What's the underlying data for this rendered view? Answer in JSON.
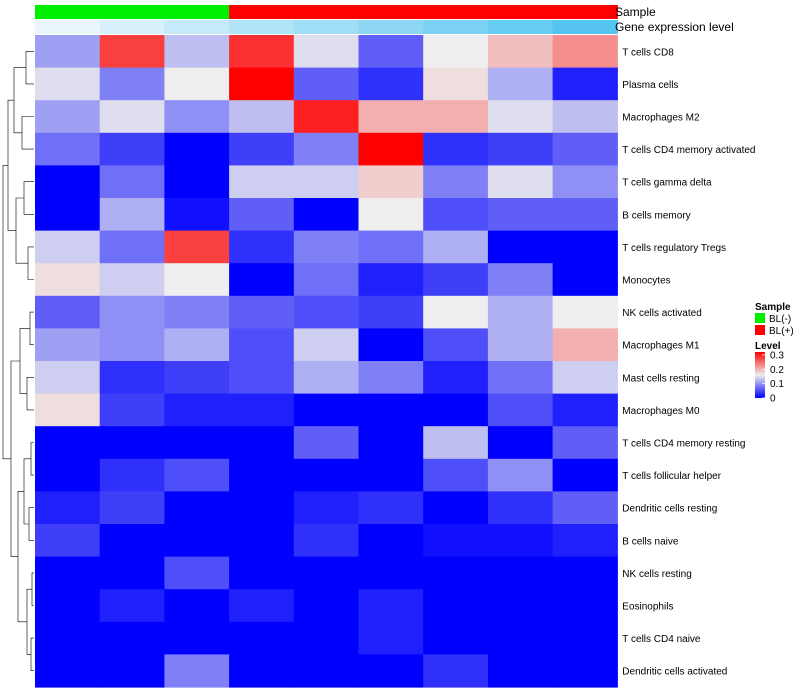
{
  "chart_data": {
    "type": "heatmap",
    "annotation_titles": {
      "sample": "Sample",
      "expression": "Gene expression level"
    },
    "samples": [
      "BL(-)",
      "BL(-)",
      "BL(-)",
      "BL(+)",
      "BL(+)",
      "BL(+)",
      "BL(+)",
      "BL(+)",
      "BL(+)"
    ],
    "expression_levels": [
      0.02,
      0.06,
      0.1,
      0.14,
      0.18,
      0.22,
      0.26,
      0.3,
      0.34
    ],
    "rows": [
      "T cells CD8",
      "Plasma cells",
      "Macrophages M2",
      "T cells CD4 memory activated",
      "T cells gamma delta",
      "B cells memory",
      "T cells regulatory  Tregs",
      "Monocytes",
      "NK cells activated",
      "Macrophages M1",
      "Mast cells resting",
      "Macrophages M0",
      "T cells CD4 memory resting",
      "T cells follicular helper",
      "Dendritic cells resting",
      "B cells naive",
      "NK cells resting",
      "Eosinophils",
      "T cells CD4 naive",
      "Dendritic cells activated"
    ],
    "values": [
      [
        0.1,
        0.26,
        0.12,
        0.27,
        0.14,
        0.06,
        0.15,
        0.18,
        0.21
      ],
      [
        0.14,
        0.08,
        0.15,
        0.3,
        0.06,
        0.03,
        0.16,
        0.11,
        0.02
      ],
      [
        0.1,
        0.14,
        0.09,
        0.12,
        0.28,
        0.19,
        0.19,
        0.14,
        0.12
      ],
      [
        0.07,
        0.04,
        0.0,
        0.04,
        0.08,
        0.3,
        0.03,
        0.04,
        0.06
      ],
      [
        0.0,
        0.07,
        0.0,
        0.13,
        0.13,
        0.17,
        0.08,
        0.14,
        0.09
      ],
      [
        0.0,
        0.11,
        0.01,
        0.06,
        0.0,
        0.15,
        0.05,
        0.06,
        0.06
      ],
      [
        0.13,
        0.07,
        0.26,
        0.03,
        0.08,
        0.07,
        0.11,
        0.0,
        0.0
      ],
      [
        0.16,
        0.13,
        0.15,
        0.0,
        0.07,
        0.02,
        0.04,
        0.08,
        0.0
      ],
      [
        0.06,
        0.09,
        0.08,
        0.06,
        0.05,
        0.04,
        0.15,
        0.11,
        0.15
      ],
      [
        0.1,
        0.09,
        0.11,
        0.05,
        0.13,
        0.0,
        0.05,
        0.11,
        0.19
      ],
      [
        0.13,
        0.03,
        0.04,
        0.05,
        0.11,
        0.08,
        0.02,
        0.07,
        0.13
      ],
      [
        0.16,
        0.04,
        0.02,
        0.02,
        0.0,
        0.0,
        0.0,
        0.05,
        0.02
      ],
      [
        0.0,
        0.0,
        0.0,
        0.0,
        0.06,
        0.0,
        0.12,
        0.0,
        0.06
      ],
      [
        0.0,
        0.03,
        0.05,
        0.0,
        0.0,
        0.0,
        0.05,
        0.09,
        0.0
      ],
      [
        0.02,
        0.04,
        0.0,
        0.0,
        0.02,
        0.03,
        0.0,
        0.03,
        0.06
      ],
      [
        0.04,
        0.0,
        0.0,
        0.0,
        0.03,
        0.0,
        0.01,
        0.01,
        0.02
      ],
      [
        0.0,
        0.0,
        0.05,
        0.0,
        0.0,
        0.0,
        0.0,
        0.0,
        0.0
      ],
      [
        0.0,
        0.02,
        0.0,
        0.02,
        0.0,
        0.02,
        0.0,
        0.0,
        0.0
      ],
      [
        0.0,
        0.0,
        0.0,
        0.0,
        0.0,
        0.02,
        0.0,
        0.0,
        0.0
      ],
      [
        0.0,
        0.0,
        0.08,
        0.0,
        0.0,
        0.0,
        0.03,
        0.0,
        0.0
      ]
    ],
    "color_scale": {
      "stops": [
        {
          "value": 0.0,
          "color": "#0000ff"
        },
        {
          "value": 0.15,
          "color": "#eeeeee"
        },
        {
          "value": 0.3,
          "color": "#ff0000"
        }
      ]
    },
    "legend": {
      "position": "right",
      "sample_title": "Sample",
      "sample_entries": [
        {
          "label": "BL(-)",
          "color": "#00ee00"
        },
        {
          "label": "BL(+)",
          "color": "#ff0000"
        }
      ],
      "level_title": "Level",
      "level_ticks": [
        {
          "value": 0.3,
          "label": "0.3"
        },
        {
          "value": 0.2,
          "label": "0.2"
        },
        {
          "value": 0.1,
          "label": "0.1"
        },
        {
          "value": 0.0,
          "label": "0"
        }
      ]
    },
    "expression_color_scale": {
      "low_color": "#eaf6fc",
      "high_color": "#55c5f0"
    },
    "row_dendrogram": true
  }
}
